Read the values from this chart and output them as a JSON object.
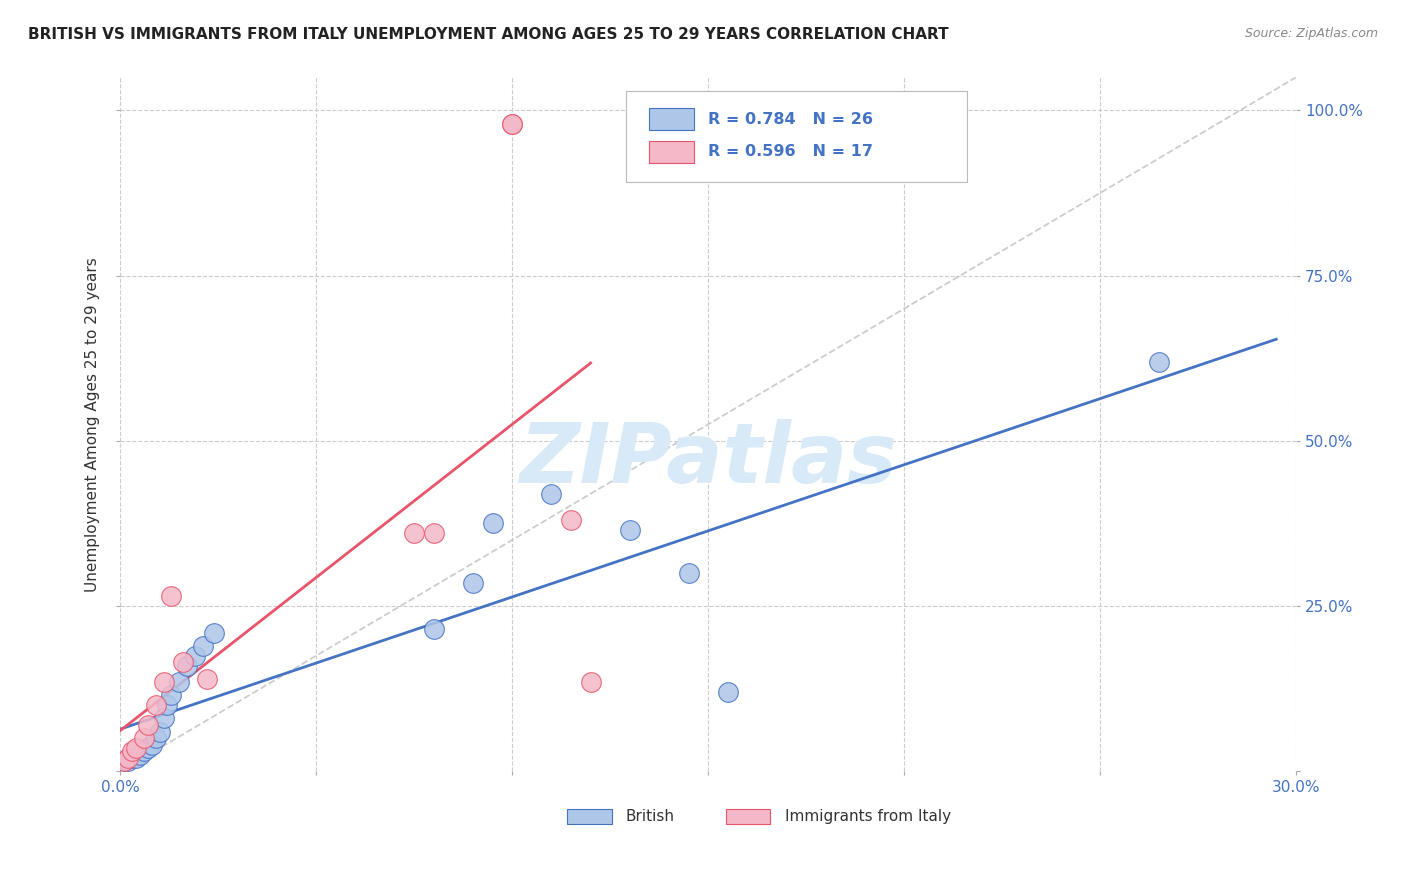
{
  "title": "BRITISH VS IMMIGRANTS FROM ITALY UNEMPLOYMENT AMONG AGES 25 TO 29 YEARS CORRELATION CHART",
  "source": "Source: ZipAtlas.com",
  "ylabel": "Unemployment Among Ages 25 to 29 years",
  "xlim": [
    0.0,
    0.3
  ],
  "ylim": [
    0.0,
    1.05
  ],
  "xticks": [
    0.0,
    0.05,
    0.1,
    0.15,
    0.2,
    0.25,
    0.3
  ],
  "xtick_labels": [
    "0.0%",
    "",
    "",
    "",
    "",
    "",
    "30.0%"
  ],
  "yticks": [
    0.0,
    0.25,
    0.5,
    0.75,
    1.0
  ],
  "ytick_labels": [
    "",
    "25.0%",
    "50.0%",
    "75.0%",
    "100.0%"
  ],
  "british_color": "#aec6e8",
  "italy_color": "#f4b8c8",
  "british_line_color": "#4472c4",
  "italy_line_color": "#e8546a",
  "diagonal_color": "#c0c0c0",
  "R_british": 0.784,
  "N_british": 26,
  "R_italy": 0.596,
  "N_italy": 17,
  "british_x": [
    0.001,
    0.002,
    0.003,
    0.004,
    0.005,
    0.006,
    0.007,
    0.008,
    0.009,
    0.01,
    0.011,
    0.012,
    0.013,
    0.015,
    0.017,
    0.019,
    0.021,
    0.024,
    0.08,
    0.09,
    0.095,
    0.11,
    0.13,
    0.145,
    0.155,
    0.265
  ],
  "british_y": [
    0.015,
    0.015,
    0.02,
    0.02,
    0.025,
    0.03,
    0.035,
    0.04,
    0.05,
    0.06,
    0.08,
    0.1,
    0.115,
    0.135,
    0.16,
    0.175,
    0.19,
    0.21,
    0.215,
    0.285,
    0.375,
    0.42,
    0.365,
    0.3,
    0.12,
    0.62
  ],
  "italy_x": [
    0.001,
    0.002,
    0.003,
    0.004,
    0.006,
    0.007,
    0.009,
    0.011,
    0.013,
    0.016,
    0.022,
    0.075,
    0.08,
    0.1,
    0.1,
    0.115,
    0.12
  ],
  "italy_y": [
    0.015,
    0.02,
    0.03,
    0.035,
    0.05,
    0.07,
    0.1,
    0.135,
    0.265,
    0.165,
    0.14,
    0.36,
    0.36,
    0.98,
    0.98,
    0.38,
    0.135
  ],
  "background_color": "#ffffff",
  "watermark_color": "#d8eaf8",
  "title_fontsize": 11,
  "tick_label_color": "#4472c4",
  "legend_color": "#4472c4"
}
